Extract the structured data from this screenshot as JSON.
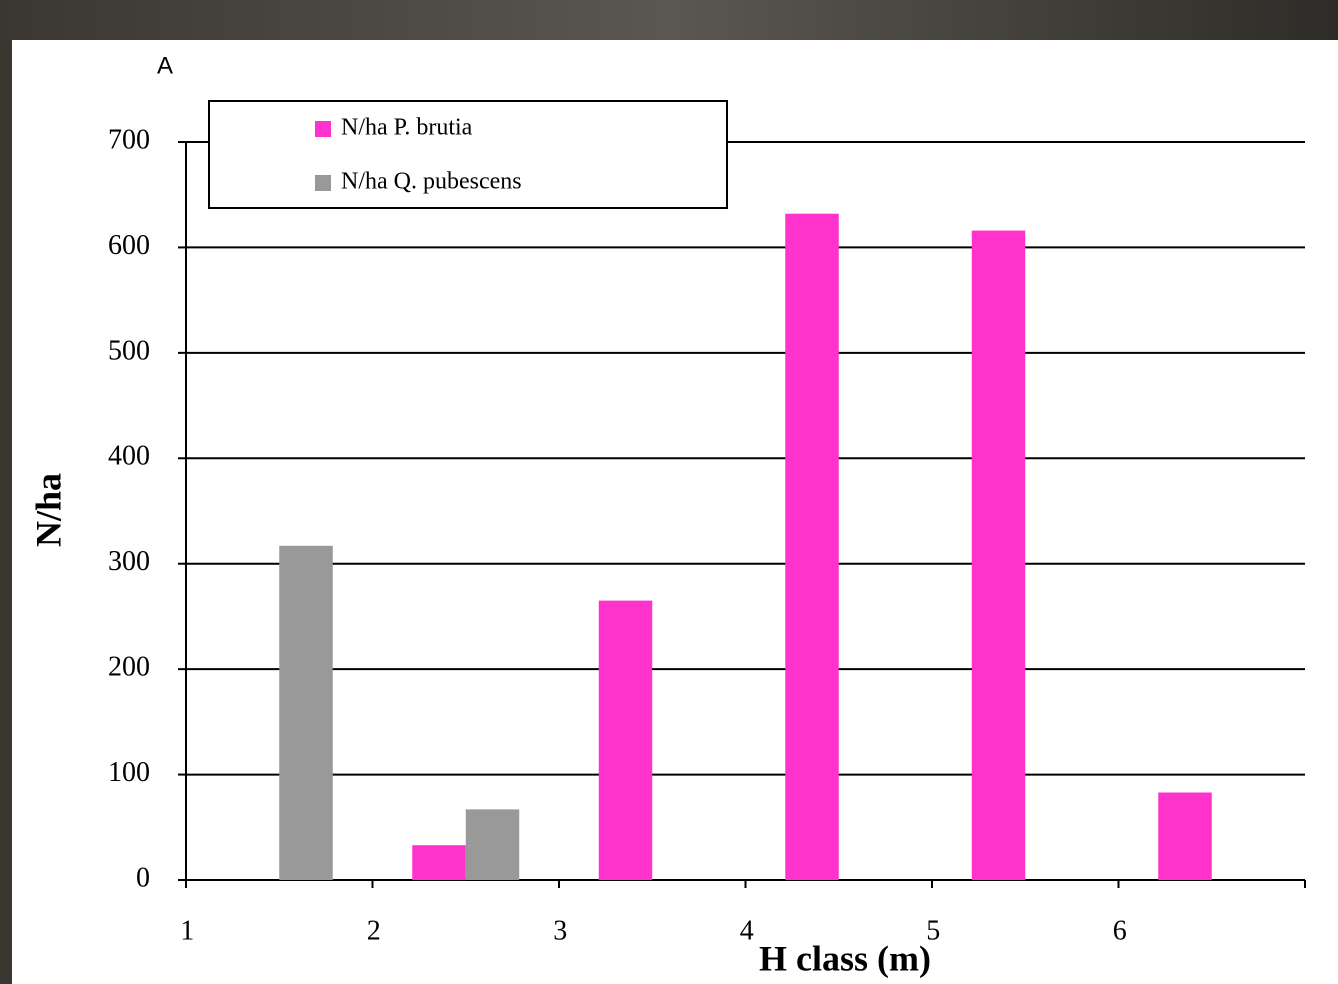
{
  "chart_data": {
    "type": "bar",
    "panel_label": "A",
    "x_label": "H class (m)",
    "y_label": "N/ha",
    "categories": [
      "1",
      "2",
      "3",
      "4",
      "5",
      "6"
    ],
    "series": [
      {
        "name": "N/ha P. brutia",
        "color": "#ff33cc",
        "values": [
          null,
          33,
          265,
          632,
          616,
          83
        ]
      },
      {
        "name": "N/ha Q. pubescens",
        "color": "#999999",
        "values": [
          317,
          67,
          null,
          null,
          null,
          null
        ]
      }
    ],
    "ylim": [
      0,
      700
    ],
    "yticks": [
      0,
      100,
      200,
      300,
      400,
      500,
      600,
      700
    ],
    "grid": true,
    "legend": "upper left"
  }
}
